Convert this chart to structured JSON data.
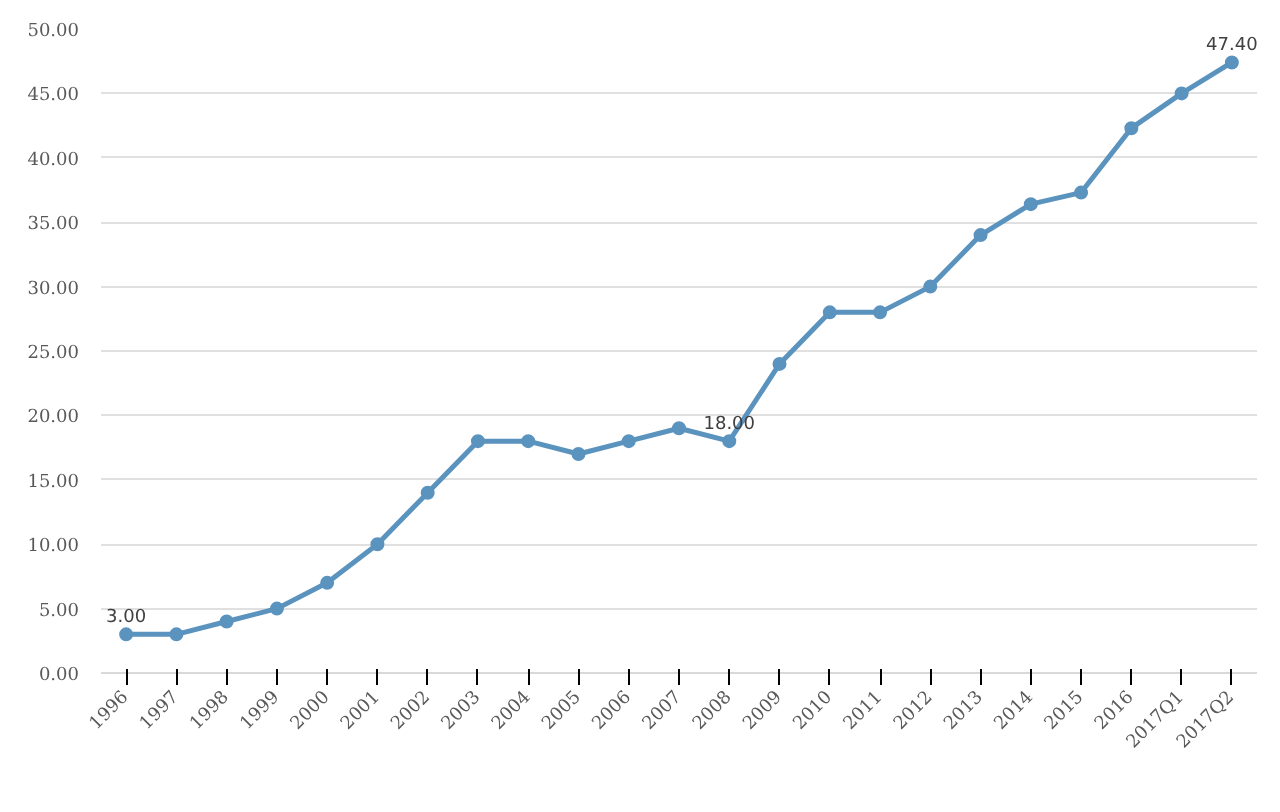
{
  "chart_data": {
    "type": "line",
    "categories": [
      "1996",
      "1997",
      "1998",
      "1999",
      "2000",
      "2001",
      "2002",
      "2003",
      "2004",
      "2005",
      "2006",
      "2007",
      "2008",
      "2009",
      "2010",
      "2011",
      "2012",
      "2013",
      "2014",
      "2015",
      "2016",
      "2017Q1",
      "2017Q2"
    ],
    "series": [
      {
        "color": "#5b93bf",
        "values": [
          3,
          3,
          4,
          5,
          7,
          10,
          14,
          18,
          18,
          17,
          18,
          19,
          18,
          24,
          28,
          28,
          30,
          34,
          36.4,
          37.3,
          42.3,
          45,
          47.4
        ],
        "value_labels": [
          "3.00",
          null,
          null,
          null,
          null,
          null,
          null,
          null,
          null,
          null,
          null,
          null,
          "18.00",
          null,
          null,
          null,
          null,
          null,
          null,
          null,
          null,
          null,
          "47.40"
        ]
      }
    ],
    "ylim": [
      0,
      50
    ],
    "yticks": [
      {
        "value": 0,
        "label": "0.00"
      },
      {
        "value": 5,
        "label": "5.00"
      },
      {
        "value": 10,
        "label": "10.00"
      },
      {
        "value": 15,
        "label": "15.00"
      },
      {
        "value": 20,
        "label": "20.00"
      },
      {
        "value": 25,
        "label": "25.00"
      },
      {
        "value": 30,
        "label": "30.00"
      },
      {
        "value": 35,
        "label": "35.00"
      },
      {
        "value": 40,
        "label": "40.00"
      },
      {
        "value": 45,
        "label": "45.00"
      },
      {
        "value": 50,
        "label": "50.00"
      }
    ],
    "grid": "y",
    "marker": "circle",
    "line_style": "solid"
  }
}
